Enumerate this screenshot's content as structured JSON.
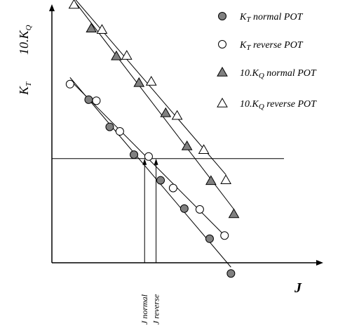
{
  "chart_data": {
    "type": "scatter",
    "title": "",
    "xlabel": "J",
    "ylabel_left": {
      "main": "K",
      "sub": "T"
    },
    "ylabel_right": {
      "main": "10.K",
      "sub": "Q"
    },
    "xlim": [
      0,
      10
    ],
    "ylim": [
      0,
      10
    ],
    "grid": false,
    "legend_position": "top-right",
    "reference_line_y": 3.9,
    "annotations": [
      {
        "label": "J normal",
        "x": 3.48
      },
      {
        "label": "J reverse",
        "x": 3.91
      }
    ],
    "series": [
      {
        "name": "K_T normal POT",
        "legend": {
          "pre": "K",
          "sub": "T",
          "post": " normal POT"
        },
        "marker": "circle",
        "fill": "#808080",
        "points": [
          [
            1.38,
            6.11
          ],
          [
            2.17,
            5.09
          ],
          [
            3.08,
            4.05
          ],
          [
            4.08,
            3.09
          ],
          [
            4.97,
            2.03
          ],
          [
            5.92,
            0.9
          ],
          [
            6.72,
            -0.4
          ]
        ],
        "line_x": [
          0.68,
          6.72
        ]
      },
      {
        "name": "K_T reverse POT",
        "legend": {
          "pre": "K",
          "sub": "T",
          "post": " reverse POT"
        },
        "marker": "circle",
        "fill": "#ffffff",
        "points": [
          [
            0.68,
            6.69
          ],
          [
            1.67,
            6.07
          ],
          [
            2.55,
            4.92
          ],
          [
            3.63,
            3.98
          ],
          [
            4.55,
            2.8
          ],
          [
            5.55,
            2.0
          ],
          [
            6.48,
            1.02
          ]
        ],
        "line_x": [
          0.68,
          6.48
        ]
      },
      {
        "name": "10.K_Q normal POT",
        "legend": {
          "pre": "10.K",
          "sub": "Q",
          "post": " normal POT"
        },
        "marker": "triangle",
        "fill": "#808080",
        "points": [
          [
            1.48,
            8.78
          ],
          [
            2.42,
            7.74
          ],
          [
            3.27,
            6.74
          ],
          [
            4.27,
            5.61
          ],
          [
            5.07,
            4.37
          ],
          [
            5.97,
            3.07
          ],
          [
            6.83,
            1.83
          ]
        ],
        "line_x": [
          0.83,
          6.83
        ]
      },
      {
        "name": "10.K_Q reverse POT",
        "legend": {
          "pre": "10.K",
          "sub": "Q",
          "post": " reverse POT"
        },
        "marker": "triangle",
        "fill": "#ffffff",
        "points": [
          [
            0.83,
            9.67
          ],
          [
            1.88,
            8.73
          ],
          [
            2.81,
            7.76
          ],
          [
            3.73,
            6.79
          ],
          [
            4.7,
            5.51
          ],
          [
            5.7,
            4.23
          ],
          [
            6.53,
            3.1
          ]
        ],
        "line_x": [
          0.83,
          6.53
        ]
      }
    ]
  }
}
